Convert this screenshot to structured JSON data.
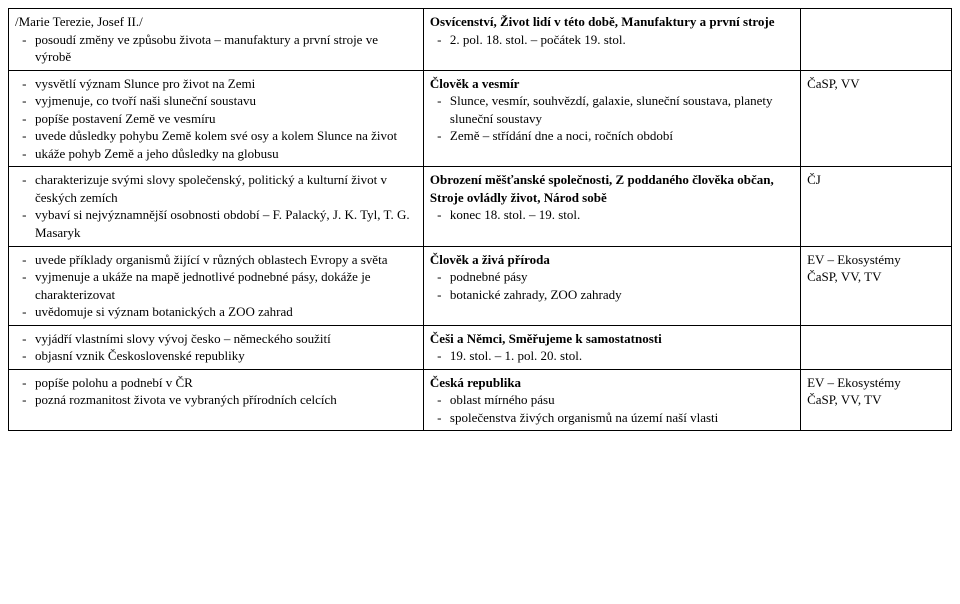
{
  "rows": [
    {
      "left_intro": "/Marie Terezie, Josef II./",
      "left_items": [
        "posoudí změny ve způsobu života – manufaktury a první stroje ve výrobě"
      ],
      "mid_header": "Osvícenství, Život lidí v této době, Manufaktury a první stroje",
      "mid_items": [
        "2. pol. 18. stol. – počátek 19. stol."
      ],
      "right": ""
    },
    {
      "left_items": [
        "vysvětlí význam Slunce pro život na Zemi",
        "vyjmenuje, co tvoří naši sluneční soustavu",
        "popíše postavení Země ve vesmíru",
        "uvede důsledky pohybu Země kolem své osy a kolem Slunce na život",
        "ukáže pohyb Země a jeho důsledky na globusu"
      ],
      "mid_header": "Člověk a vesmír",
      "mid_items": [
        "Slunce, vesmír, souhvězdí, galaxie, sluneční soustava, planety sluneční soustavy",
        "Země – střídání dne a noci, ročních období"
      ],
      "right": "ČaSP, VV"
    },
    {
      "left_items": [
        "charakterizuje svými slovy společenský, politický a kulturní život v českých zemích",
        "vybaví si nejvýznamnější osobnosti období – F. Palacký, J. K. Tyl, T. G. Masaryk"
      ],
      "mid_header": "Obrození měšťanské společnosti, Z poddaného člověka občan, Stroje ovládly život, Národ sobě",
      "mid_items": [
        "konec 18. stol. – 19. stol."
      ],
      "right": "ČJ"
    },
    {
      "left_items": [
        "uvede příklady organismů žijící v různých oblastech Evropy a světa",
        "vyjmenuje a ukáže na mapě jednotlivé podnebné pásy, dokáže je charakterizovat",
        "uvědomuje si význam botanických a ZOO zahrad"
      ],
      "mid_header": "Člověk a živá příroda",
      "mid_items": [
        "podnebné pásy",
        "botanické zahrady, ZOO zahrady"
      ],
      "right": "EV – Ekosystémy\nČaSP, VV, TV"
    },
    {
      "left_items": [
        "vyjádří vlastními slovy vývoj česko – německého soužití",
        "objasní vznik Československé republiky"
      ],
      "mid_header": "Češi a Němci, Směřujeme k samostatnosti",
      "mid_items": [
        "19. stol. – 1. pol. 20. stol."
      ],
      "right": ""
    },
    {
      "left_items": [
        "popíše polohu a podnebí v ČR",
        "pozná rozmanitost života ve vybraných přírodních celcích"
      ],
      "mid_header": "Česká republika",
      "mid_items": [
        "oblast mírného pásu",
        "společenstva živých organismů na území naší vlasti"
      ],
      "right": "EV – Ekosystémy\nČaSP, VV, TV"
    }
  ]
}
